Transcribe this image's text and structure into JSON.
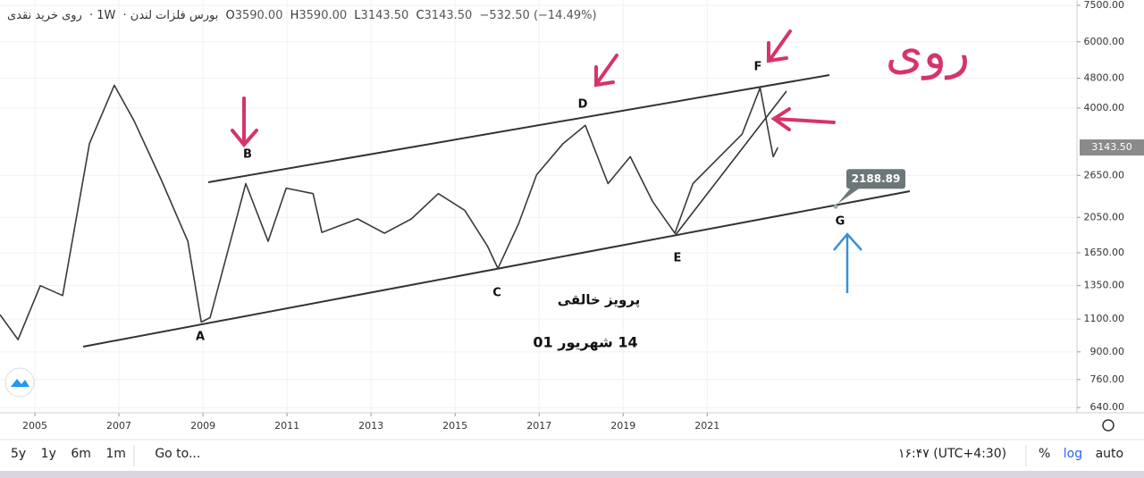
{
  "header": {
    "symbol": "روی خرید نقدی",
    "interval": "1W",
    "exchange": "بورس فلزات لندن",
    "open_label": "O",
    "open": "3590.00",
    "high_label": "H",
    "high": "3590.00",
    "low_label": "L",
    "low": "3143.50",
    "close_label": "C",
    "close": "3143.50",
    "change": "−532.50 (−14.49%)"
  },
  "chart_data": {
    "type": "line",
    "log_scale": true,
    "grid": true,
    "color": "#3a3a3a",
    "x": [
      2004.17,
      2004.6,
      2005.13,
      2005.66,
      2006.3,
      2006.89,
      2007.36,
      2008.0,
      2008.64,
      2008.96,
      2009.17,
      2010.02,
      2010.55,
      2010.98,
      2011.62,
      2011.83,
      2012.68,
      2013.32,
      2013.96,
      2014.6,
      2015.23,
      2015.77,
      2016.02,
      2016.51,
      2016.94,
      2017.57,
      2018.1,
      2018.64,
      2019.17,
      2019.7,
      2020.23,
      2020.66,
      2021.19,
      2021.83,
      2022.26,
      2022.57,
      2022.68
    ],
    "values": [
      1130,
      970,
      1350,
      1270,
      3220,
      4600,
      3700,
      2590,
      1770,
      1080,
      1110,
      2520,
      1770,
      2450,
      2370,
      1870,
      2030,
      1860,
      2030,
      2370,
      2140,
      1720,
      1500,
      1970,
      2660,
      3220,
      3600,
      2520,
      2970,
      2260,
      1860,
      2520,
      2890,
      3410,
      4530,
      2970,
      3143.5
    ],
    "xlim": [
      2004.17,
      2029.8
    ],
    "xticks": [
      2005,
      2007,
      2009,
      2011,
      2013,
      2015,
      2017,
      2019,
      2021
    ],
    "ylim": [
      620,
      7750
    ],
    "yticks": [
      {
        "value": 640,
        "label": "640.00"
      },
      {
        "value": 760,
        "label": "760.00"
      },
      {
        "value": 900,
        "label": "900.00"
      },
      {
        "value": 1100,
        "label": "1100.00"
      },
      {
        "value": 1350,
        "label": "1350.00"
      },
      {
        "value": 1650,
        "label": "1650.00"
      },
      {
        "value": 2050,
        "label": "2050.00"
      },
      {
        "value": 2650,
        "label": "2650.00"
      },
      {
        "value": 4000,
        "label": "4000.00"
      },
      {
        "value": 4800,
        "label": "4800.00"
      },
      {
        "value": 6000,
        "label": "6000.00"
      },
      {
        "value": 7500,
        "label": "7500.00"
      }
    ],
    "last_price": {
      "value": 3143.5,
      "label": "3143.50"
    },
    "target_price": 2188.89,
    "wave_labels": [
      "A",
      "B",
      "C",
      "D",
      "E",
      "F",
      "G"
    ],
    "annotations": {
      "title": "روی",
      "author": "پرویز خالقی",
      "date": "14 شهریور 01"
    }
  },
  "toolbar": {
    "ranges": [
      "5y",
      "1y",
      "6m",
      "1m"
    ],
    "goto": "Go to...",
    "time": "۱۶:۴۷ (UTC+4:30)",
    "percent": "%",
    "log": "log",
    "auto": "auto"
  }
}
